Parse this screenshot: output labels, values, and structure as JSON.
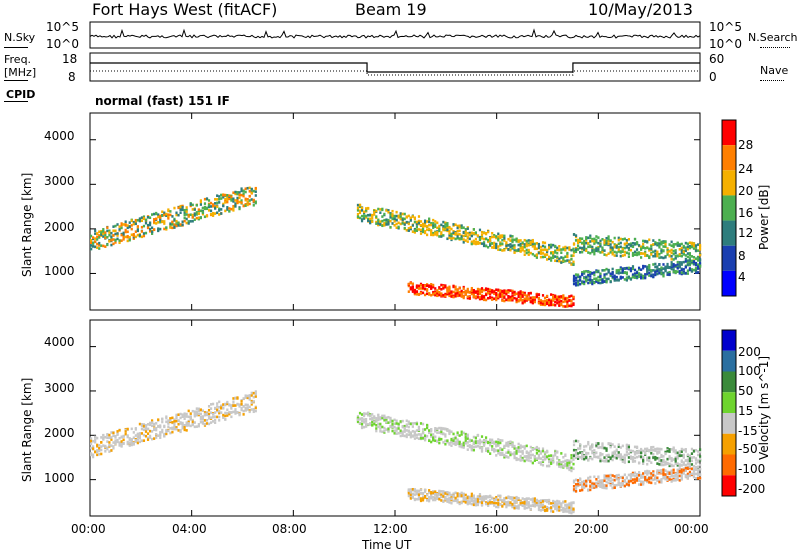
{
  "header": {
    "station": "Fort Hays West (fitACF)",
    "beam": "Beam 19",
    "date": "10/May/2013"
  },
  "summary_panel": {
    "nsky_label": "N.Sky",
    "nsearch_label": "N.Search",
    "freq_label": "Freq.",
    "freq_unit": "[MHz]",
    "nave_label": "Nave",
    "cpid_label": "CPID",
    "left_ticks_noise": [
      "10^5",
      "10^0"
    ],
    "right_ticks_noise": [
      "10^5",
      "10^0"
    ],
    "left_ticks_freq": [
      "18",
      "8"
    ],
    "right_ticks_nave": [
      "60",
      "0"
    ],
    "cpid_text": "normal (fast) 151 IF"
  },
  "x_axis": {
    "label": "Time UT",
    "ticks": [
      "00:00",
      "04:00",
      "08:00",
      "12:00",
      "16:00",
      "20:00",
      "00:00"
    ]
  },
  "colors": {
    "power": [
      "#0000ff",
      "#1a3fb0",
      "#2e7d7d",
      "#4caf50",
      "#f5b000",
      "#ff7f00",
      "#ff0000"
    ],
    "velocity": [
      "#0000cc",
      "#2a6fa0",
      "#3a8a3a",
      "#6ed42e",
      "#c8c8c8",
      "#f5a000",
      "#ff6a00",
      "#ff0000"
    ]
  },
  "chart_data": [
    {
      "type": "heatmap",
      "ylabel": "Slant Range [km]",
      "xlabel": "",
      "yticks": [
        1000,
        2000,
        3000,
        4000
      ],
      "ylim": [
        180,
        4600
      ],
      "xlim_hours": [
        0,
        24
      ],
      "colorbar": {
        "label": "Power [dB]",
        "ticks": [
          "4",
          "8",
          "12",
          "16",
          "20",
          "24",
          "28"
        ]
      }
    },
    {
      "type": "heatmap",
      "ylabel": "Slant Range [km]",
      "xlabel": "Time UT",
      "yticks": [
        1000,
        2000,
        3000,
        4000
      ],
      "ylim": [
        180,
        4600
      ],
      "xlim_hours": [
        0,
        24
      ],
      "colorbar": {
        "label": "Velocity [m s^-1]",
        "ticks": [
          "200",
          "100",
          "50",
          "15",
          "-15",
          "-50",
          "-100",
          "-200"
        ]
      }
    }
  ]
}
